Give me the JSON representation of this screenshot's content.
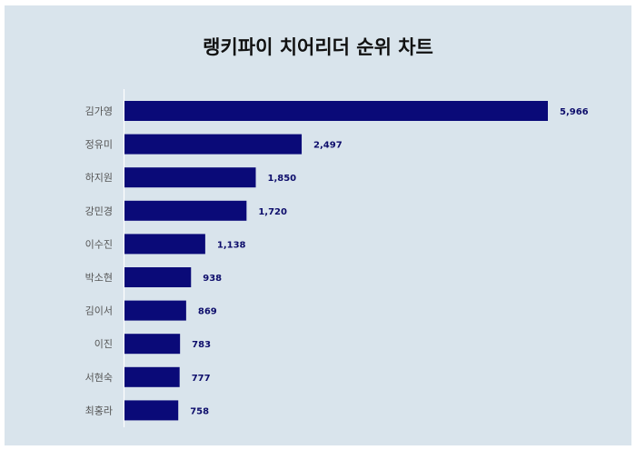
{
  "chart_data": {
    "type": "bar",
    "orientation": "horizontal",
    "title": "랭키파이 치어리더 순위 차트",
    "categories": [
      "김가영",
      "정유미",
      "하지원",
      "강민경",
      "이수진",
      "박소현",
      "김이서",
      "이진",
      "서현숙",
      "최홍라"
    ],
    "values": [
      5966,
      2497,
      1850,
      1720,
      1138,
      938,
      869,
      783,
      777,
      758
    ],
    "value_labels": [
      "5,966",
      "2,497",
      "1,850",
      "1,720",
      "1,138",
      "938",
      "869",
      "783",
      "777",
      "758"
    ],
    "xlim": [
      0,
      5966
    ],
    "grid": false,
    "colors": {
      "bar": "#0a0a78",
      "background": "#d9e4ec",
      "value_text": "#0d0d6b"
    }
  }
}
